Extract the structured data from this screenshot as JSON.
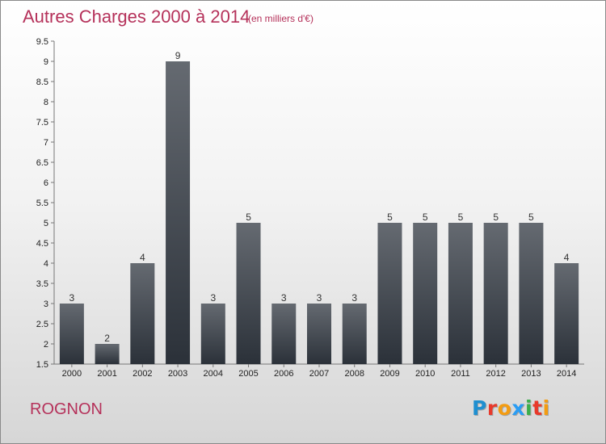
{
  "header": {
    "title": "Autres Charges 2000 à 2014",
    "subtitle": "(en milliers d'€)"
  },
  "footer": {
    "commune": "ROGNON",
    "logo_text": "Proxiti"
  },
  "colors": {
    "accent": "#b5315a",
    "bar_top": "#656a71",
    "bar_bottom": "#2b3139",
    "logo_letters": [
      "#1f8fd0",
      "#e8392b",
      "#f39c12",
      "#2a9df4",
      "#3cae4b",
      "#e8392b",
      "#f39c12"
    ]
  },
  "chart_data": {
    "type": "bar",
    "title": "Autres Charges 2000 à 2014",
    "subtitle": "(en milliers d'€)",
    "categories": [
      "2000",
      "2001",
      "2002",
      "2003",
      "2004",
      "2005",
      "2006",
      "2007",
      "2008",
      "2009",
      "2010",
      "2011",
      "2012",
      "2013",
      "2014"
    ],
    "values": [
      3,
      2,
      4,
      9,
      3,
      5,
      3,
      3,
      3,
      5,
      5,
      5,
      5,
      5,
      4
    ],
    "ylim": [
      1.5,
      9.5
    ],
    "yticks": [
      "1.5",
      "2",
      "2.5",
      "3",
      "3.5",
      "4",
      "4.5",
      "5",
      "5.5",
      "6",
      "6.5",
      "7",
      "7.5",
      "8",
      "8.5",
      "9",
      "9.5"
    ],
    "grid": false,
    "data_labels": true
  }
}
